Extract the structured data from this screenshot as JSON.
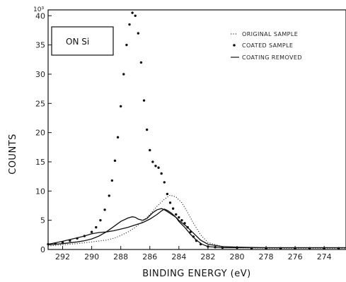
{
  "chart_data": {
    "type": "scatter",
    "xlabel": "BINDING ENERGY (eV)",
    "ylabel": "COUNTS",
    "y_multiplier_label": "10³",
    "annotation": "ON Si",
    "xlim": [
      293,
      272.5
    ],
    "ylim": [
      0,
      41
    ],
    "x_reversed": true,
    "x_ticks": [
      292,
      290,
      288,
      286,
      284,
      282,
      280,
      278,
      276,
      274
    ],
    "y_ticks": [
      0,
      5,
      10,
      15,
      20,
      25,
      30,
      35,
      40
    ],
    "legend_placement": "top-right",
    "grid": false,
    "series": [
      {
        "name": "ORIGINAL SAMPLE",
        "style": "dotted",
        "color": "#333333",
        "x": [
          293,
          292,
          291,
          290,
          289,
          288.5,
          288,
          287.5,
          287,
          286.5,
          286,
          285.5,
          285,
          284.6,
          284.2,
          283.8,
          283.5,
          283,
          282.5,
          282,
          281,
          280,
          278,
          276,
          274,
          272.5
        ],
        "y": [
          0.6,
          0.8,
          1.0,
          1.3,
          1.6,
          1.9,
          2.4,
          3.0,
          3.8,
          4.8,
          6.0,
          7.4,
          8.6,
          9.3,
          9.0,
          8.0,
          6.8,
          4.5,
          2.5,
          1.2,
          0.5,
          0.3,
          0.2,
          0.2,
          0.2,
          0.2
        ]
      },
      {
        "name": "COATED SAMPLE",
        "style": "points",
        "color": "#111111",
        "x": [
          293,
          292.5,
          292,
          291.5,
          291,
          290.5,
          290,
          289.7,
          289.4,
          289.1,
          288.8,
          288.6,
          288.4,
          288.2,
          288,
          287.8,
          287.6,
          287.4,
          287.2,
          287.0,
          286.8,
          286.6,
          286.4,
          286.2,
          286.0,
          285.8,
          285.6,
          285.4,
          285.2,
          285.0,
          284.8,
          284.6,
          284.4,
          284.2,
          284.0,
          283.8,
          283.6,
          283.4,
          283.2,
          283.0,
          282.8,
          282.5,
          282.0,
          281.5,
          281,
          280,
          279,
          278,
          277,
          276,
          275,
          274,
          273
        ],
        "y": [
          0.9,
          1.0,
          1.2,
          1.5,
          1.9,
          2.3,
          3.0,
          3.8,
          5.0,
          6.8,
          9.2,
          11.8,
          15.2,
          19.2,
          24.5,
          30.0,
          35.0,
          38.5,
          40.5,
          40.0,
          37.0,
          32.0,
          25.5,
          20.5,
          17.0,
          15.0,
          14.3,
          14.0,
          13.0,
          11.5,
          9.5,
          8.0,
          7.0,
          6.0,
          5.5,
          5.0,
          4.5,
          3.8,
          3.0,
          2.2,
          1.5,
          0.9,
          0.5,
          0.4,
          0.3,
          0.3,
          0.2,
          0.2,
          0.2,
          0.2,
          0.2,
          0.2,
          0.2
        ]
      },
      {
        "name": "COATING REMOVED",
        "style": "solid",
        "color": "#111111",
        "x": [
          293,
          292,
          291,
          290.5,
          290,
          289.5,
          289,
          288.5,
          288,
          287.5,
          287.2,
          287,
          286.8,
          286.5,
          286.2,
          286,
          285.8,
          285.5,
          285.2,
          285,
          284.8,
          284.5,
          284.2,
          284,
          283.5,
          283,
          282.5,
          282,
          281,
          280,
          278,
          276,
          274,
          272.5
        ],
        "y": [
          0.8,
          1.0,
          1.3,
          1.5,
          1.8,
          2.3,
          3.0,
          3.9,
          4.8,
          5.4,
          5.6,
          5.5,
          5.2,
          5.0,
          5.3,
          5.8,
          6.3,
          6.8,
          7.0,
          6.8,
          6.5,
          6.0,
          5.5,
          5.0,
          4.0,
          2.8,
          1.6,
          0.9,
          0.5,
          0.4,
          0.3,
          0.3,
          0.3,
          0.3
        ]
      },
      {
        "name": "",
        "style": "solid",
        "color": "#111111",
        "x": [
          293,
          292,
          291,
          290.5,
          290,
          289.5,
          289,
          288.5,
          288,
          287.5,
          287,
          286.5,
          286,
          285.5,
          285.2,
          285,
          284.8,
          284.5,
          284.2,
          284,
          283.6,
          283.2,
          282.8,
          282.4,
          282,
          281,
          280,
          278,
          276,
          274,
          272.5
        ],
        "y": [
          0.9,
          1.4,
          2.0,
          2.3,
          2.7,
          2.9,
          3.0,
          3.2,
          3.5,
          3.8,
          4.2,
          4.6,
          5.2,
          6.0,
          6.6,
          6.9,
          6.7,
          6.2,
          5.5,
          4.8,
          3.8,
          2.6,
          1.6,
          0.9,
          0.5,
          0.3,
          0.3,
          0.3,
          0.3,
          0.3,
          0.3
        ]
      }
    ]
  }
}
